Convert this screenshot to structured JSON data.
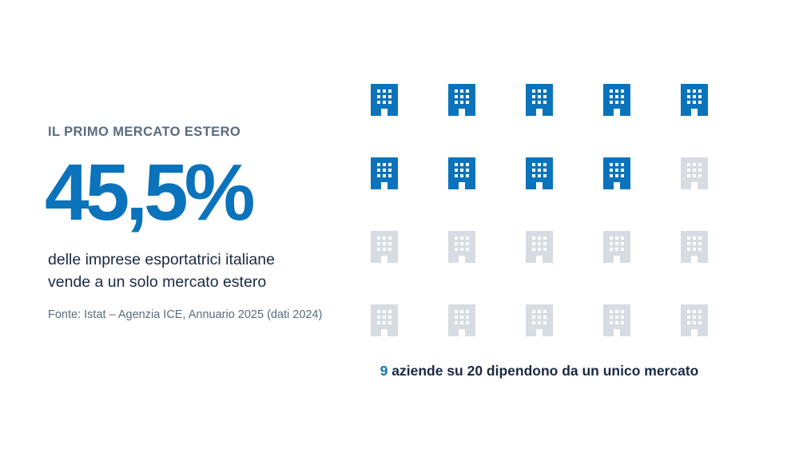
{
  "kicker": "IL PRIMO MERCATO ESTERO",
  "stat": "45,5%",
  "description": {
    "line1": "delle imprese esportatrici italiane",
    "line2": "vende a un solo mercato estero"
  },
  "source": "Fonte: Istat – Agenzia ICE, Annuario 2025 (dati 2024)",
  "icon_grid": {
    "icon": "building-icon",
    "total": 20,
    "highlighted": 9,
    "highlight_color": "#0b73bb",
    "inactive_color": "#d6dce2"
  },
  "caption": {
    "number": "9",
    "text": " aziende su 20 dipendono da un unico mercato"
  },
  "colors": {
    "accent": "#0b73bb",
    "text_dark": "#1a2a44",
    "text_muted": "#5a6b80"
  }
}
